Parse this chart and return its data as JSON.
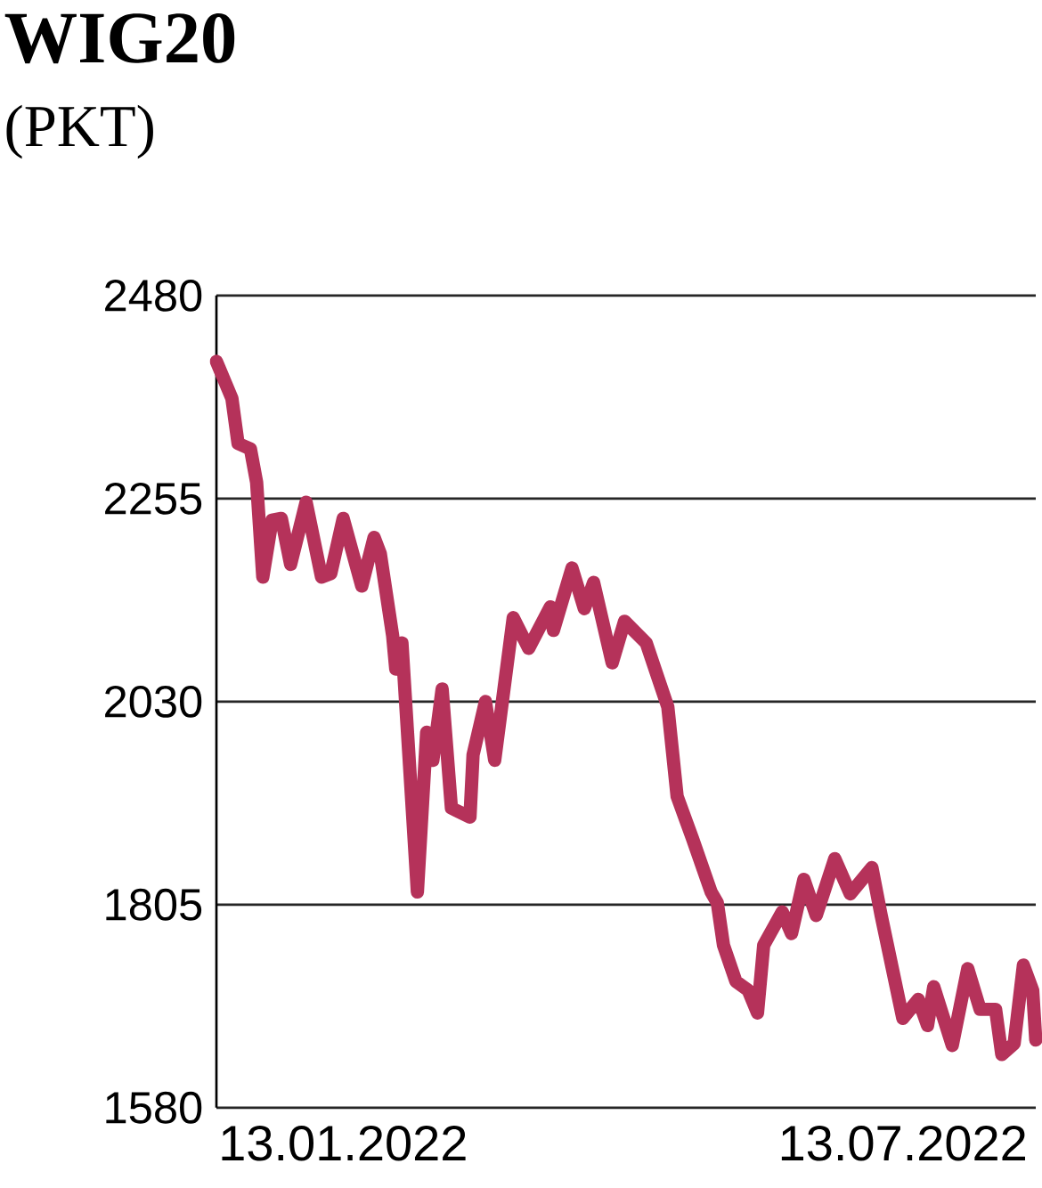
{
  "chart_data": {
    "type": "line",
    "title": "WIG20",
    "subtitle": "(PKT)",
    "x": [
      "2021-12-03",
      "2021-12-08",
      "2021-12-10",
      "2021-12-14",
      "2021-12-16",
      "2021-12-18",
      "2021-12-21",
      "2021-12-24",
      "2021-12-27",
      "2022-01-01",
      "2022-01-06",
      "2022-01-09",
      "2022-01-13",
      "2022-01-19",
      "2022-01-23",
      "2022-01-25",
      "2022-01-29",
      "2022-01-30",
      "2022-02-01",
      "2022-02-06",
      "2022-02-09",
      "2022-02-11",
      "2022-02-14",
      "2022-02-17",
      "2022-02-23",
      "2022-02-24",
      "2022-02-28",
      "2022-03-03",
      "2022-03-09",
      "2022-03-14",
      "2022-03-21",
      "2022-03-22",
      "2022-03-28",
      "2022-04-01",
      "2022-04-04",
      "2022-04-10",
      "2022-04-14",
      "2022-04-21",
      "2022-04-28",
      "2022-05-01",
      "2022-05-06",
      "2022-05-12",
      "2022-05-14",
      "2022-05-16",
      "2022-05-20",
      "2022-05-24",
      "2022-05-27",
      "2022-05-29",
      "2022-06-04",
      "2022-06-07",
      "2022-06-11",
      "2022-06-15",
      "2022-06-21",
      "2022-06-26",
      "2022-07-03",
      "2022-07-06",
      "2022-07-13",
      "2022-07-18",
      "2022-07-21",
      "2022-07-23",
      "2022-07-29",
      "2022-08-03",
      "2022-08-07",
      "2022-08-12",
      "2022-08-14",
      "2022-08-18",
      "2022-08-21",
      "2022-08-24",
      "2022-08-25"
    ],
    "series": [
      {
        "color": "#b5325a",
        "values": [
          2407,
          2366,
          2316,
          2310,
          2273,
          2168,
          2231,
          2233,
          2182,
          2251,
          2168,
          2172,
          2233,
          2158,
          2212,
          2194,
          2103,
          2066,
          2095,
          1819,
          1996,
          1965,
          2044,
          1912,
          1902,
          1971,
          2030,
          1965,
          2123,
          2089,
          2135,
          2109,
          2178,
          2133,
          2162,
          2073,
          2119,
          2095,
          2024,
          1925,
          1878,
          1819,
          1807,
          1760,
          1720,
          1710,
          1685,
          1760,
          1797,
          1773,
          1833,
          1793,
          1856,
          1817,
          1846,
          1793,
          1679,
          1700,
          1671,
          1714,
          1649,
          1734,
          1689,
          1689,
          1639,
          1651,
          1738,
          1710,
          1655
        ]
      }
    ],
    "xlim": [
      "2021-12-03",
      "2022-08-25"
    ],
    "xticks": [
      {
        "value": "2022-01-13",
        "label": "13.01.2022"
      },
      {
        "value": "2022-07-13",
        "label": "13.07.2022"
      }
    ],
    "ylim": [
      1580,
      2480
    ],
    "yticks": [
      1580,
      1805,
      2030,
      2255,
      2480
    ],
    "grid": "y",
    "line_style": "solid"
  }
}
